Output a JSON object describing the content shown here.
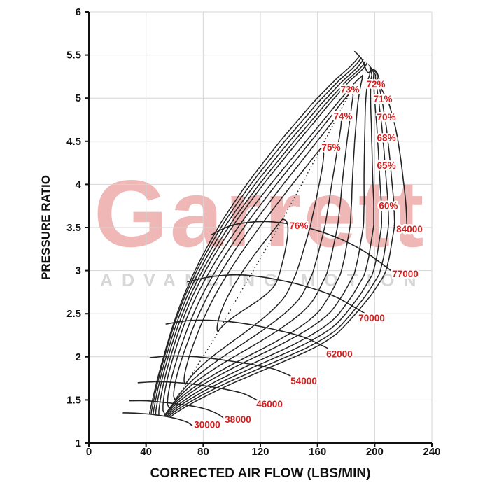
{
  "watermark": {
    "brand": "Garrett",
    "tagline": "ADVANCING MOTION",
    "brand_color": "rgba(217,83,79,0.42)",
    "tagline_color": "#d7d7d7"
  },
  "chart_data": {
    "type": "line",
    "subtype": "compressor-map",
    "title": "",
    "xlabel": "CORRECTED AIR FLOW (LBS/MIN)",
    "ylabel": "PRESSURE RATIO",
    "xlim": [
      0,
      240
    ],
    "ylim": [
      1,
      6
    ],
    "xticks": [
      0,
      40,
      80,
      120,
      160,
      200,
      240
    ],
    "yticks": [
      1,
      1.5,
      2,
      2.5,
      3,
      3.5,
      4,
      4.5,
      5,
      5.5,
      6
    ],
    "grid": true,
    "grid_color": "#d4d4d4",
    "line_color": "#232323",
    "label_color": "#d81e1e",
    "surge_line": [
      [
        24,
        1.35
      ],
      [
        29,
        1.52
      ],
      [
        35,
        1.73
      ],
      [
        43,
        2.0
      ],
      [
        52,
        2.32
      ],
      [
        63,
        2.7
      ],
      [
        76,
        3.12
      ],
      [
        91,
        3.58
      ],
      [
        108,
        4.05
      ],
      [
        127,
        4.52
      ],
      [
        147,
        4.95
      ],
      [
        166,
        5.28
      ],
      [
        178,
        5.44
      ],
      [
        186,
        5.54
      ]
    ],
    "ridge_line": [
      [
        52,
        1.3
      ],
      [
        58,
        1.44
      ],
      [
        66,
        1.64
      ],
      [
        76,
        1.9
      ],
      [
        88,
        2.22
      ],
      [
        101,
        2.6
      ],
      [
        115,
        3.0
      ],
      [
        129,
        3.4
      ],
      [
        143,
        3.82
      ],
      [
        156,
        4.22
      ],
      [
        168,
        4.6
      ],
      [
        179,
        4.95
      ],
      [
        188,
        5.2
      ],
      [
        194,
        5.3
      ],
      [
        197,
        5.38
      ],
      [
        200,
        5.7
      ],
      [
        202,
        6.1
      ],
      [
        204,
        6.8
      ]
    ],
    "choke_line": [
      [
        186,
        5.54
      ],
      [
        194,
        5.42
      ],
      [
        199,
        5.33
      ],
      [
        203,
        5.3
      ],
      [
        207,
        5.15
      ],
      [
        211,
        4.95
      ],
      [
        215,
        4.68
      ],
      [
        218,
        4.38
      ],
      [
        220,
        4.1
      ],
      [
        222,
        3.8
      ],
      [
        222.5,
        3.53
      ],
      [
        218,
        3.15
      ],
      [
        214.5,
        2.96
      ],
      [
        204,
        2.72
      ],
      [
        192.5,
        2.51
      ],
      [
        180,
        2.3
      ],
      [
        167,
        2.1
      ],
      [
        154,
        1.94
      ],
      [
        141,
        1.78
      ],
      [
        129,
        1.64
      ],
      [
        117.5,
        1.5
      ],
      [
        106,
        1.39
      ],
      [
        94.5,
        1.29
      ],
      [
        83,
        1.24
      ],
      [
        72.5,
        1.2
      ]
    ],
    "speed_lines": [
      {
        "rpm": 30000,
        "label": "30000",
        "label_pos": {
          "f": 82.8,
          "p": 1.21
        },
        "points": [
          [
            24,
            1.35
          ],
          [
            34,
            1.345
          ],
          [
            45,
            1.33
          ],
          [
            55,
            1.305
          ],
          [
            63,
            1.275
          ],
          [
            69,
            1.24
          ],
          [
            72.5,
            1.2
          ]
        ]
      },
      {
        "rpm": 38000,
        "label": "38000",
        "label_pos": {
          "f": 104.3,
          "p": 1.27
        },
        "points": [
          [
            28.5,
            1.49
          ],
          [
            40,
            1.49
          ],
          [
            53,
            1.47
          ],
          [
            66,
            1.445
          ],
          [
            78,
            1.41
          ],
          [
            88,
            1.355
          ],
          [
            94.5,
            1.29
          ]
        ]
      },
      {
        "rpm": 46000,
        "label": "46000",
        "label_pos": {
          "f": 126.4,
          "p": 1.45
        },
        "points": [
          [
            34.5,
            1.7
          ],
          [
            48,
            1.71
          ],
          [
            63,
            1.7
          ],
          [
            79,
            1.67
          ],
          [
            95,
            1.625
          ],
          [
            108,
            1.575
          ],
          [
            117.5,
            1.5
          ]
        ]
      },
      {
        "rpm": 54000,
        "label": "54000",
        "label_pos": {
          "f": 150.4,
          "p": 1.72
        },
        "points": [
          [
            42.8,
            1.99
          ],
          [
            58,
            2.01
          ],
          [
            76,
            2.0
          ],
          [
            95,
            1.96
          ],
          [
            113,
            1.915
          ],
          [
            129,
            1.86
          ],
          [
            141,
            1.78
          ]
        ]
      },
      {
        "rpm": 62000,
        "label": "62000",
        "label_pos": {
          "f": 175.3,
          "p": 2.03
        },
        "points": [
          [
            54,
            2.38
          ],
          [
            70,
            2.42
          ],
          [
            89,
            2.42
          ],
          [
            109,
            2.385
          ],
          [
            129,
            2.32
          ],
          [
            150,
            2.23
          ],
          [
            167,
            2.1
          ]
        ]
      },
      {
        "rpm": 70000,
        "label": "70000",
        "label_pos": {
          "f": 197.9,
          "p": 2.45
        },
        "points": [
          [
            69,
            2.87
          ],
          [
            86,
            2.93
          ],
          [
            106,
            2.95
          ],
          [
            127,
            2.91
          ],
          [
            149,
            2.83
          ],
          [
            172,
            2.7
          ],
          [
            192.5,
            2.51
          ]
        ]
      },
      {
        "rpm": 77000,
        "label": "77000",
        "label_pos": {
          "f": 221.4,
          "p": 2.96
        },
        "points": [
          [
            86,
            3.42
          ],
          [
            101,
            3.53
          ],
          [
            122,
            3.57
          ],
          [
            144,
            3.53
          ],
          [
            168,
            3.42
          ],
          [
            192,
            3.23
          ],
          [
            214.5,
            2.96
          ]
        ]
      },
      {
        "rpm": 84000,
        "label": "84000",
        "label_pos": {
          "f": 224.3,
          "p": 3.48
        },
        "points": [
          [
            186,
            5.54
          ],
          [
            191,
            5.45
          ],
          [
            195,
            5.3
          ],
          [
            199,
            5.33
          ],
          [
            202,
            5.28
          ],
          [
            205,
            5.1
          ],
          [
            209,
            4.98
          ],
          [
            212,
            4.82
          ],
          [
            215,
            4.62
          ],
          [
            218,
            4.32
          ],
          [
            220,
            4.05
          ],
          [
            221.8,
            3.78
          ],
          [
            222.5,
            3.53
          ]
        ]
      }
    ],
    "efficiency_contours": [
      {
        "pct": "76%",
        "p_bottom": 2.29,
        "p_apex": 3.6,
        "hug_surge": 0.82,
        "bulge": 0.28,
        "rise_q": 0.5,
        "fall_start": 0.55,
        "label_pos": {
          "f": 146.9,
          "p": 3.52
        }
      },
      {
        "pct": "75%",
        "p_bottom": 1.68,
        "p_apex": 4.42,
        "hug_surge": 0.6,
        "bulge": 0.42,
        "rise_q": 0.48,
        "fall_start": 0.6,
        "label_pos": {
          "f": 169.5,
          "p": 4.43
        }
      },
      {
        "pct": "74%",
        "p_bottom": 1.5,
        "p_apex": 4.82,
        "hug_surge": 0.48,
        "bulge": 0.55,
        "rise_q": 0.45,
        "fall_start": 0.62,
        "label_pos": {
          "f": 177.8,
          "p": 4.79
        }
      },
      {
        "pct": "73%",
        "p_bottom": 1.4,
        "p_apex": 5.08,
        "hug_surge": 0.38,
        "bulge": 0.66,
        "rise_q": 0.42,
        "fall_start": 0.65,
        "label_pos": {
          "f": 182.7,
          "p": 5.1
        }
      },
      {
        "pct": "72%",
        "p_bottom": 1.33,
        "p_apex": 5.26,
        "hug_surge": 0.29,
        "bulge": 0.76,
        "rise_q": 0.38,
        "fall_start": 0.68,
        "label_pos": {
          "f": 200.8,
          "p": 5.16
        }
      },
      {
        "pct": "71%",
        "p_bottom": 1.26,
        "p_apex": 5.65,
        "hug_surge": 0.22,
        "bulge": 0.84,
        "rise_q": 0.33,
        "fall_start": 0.7,
        "label_pos": {
          "f": 205.7,
          "p": 4.99
        }
      },
      {
        "pct": "70%",
        "p_bottom": 1.2,
        "p_apex": 5.85,
        "hug_surge": 0.17,
        "bulge": 0.9,
        "rise_q": 0.28,
        "fall_start": 0.72,
        "label_pos": {
          "f": 208.2,
          "p": 4.78
        }
      },
      {
        "pct": "68%",
        "p_bottom": 1.15,
        "p_apex": 6.1,
        "hug_surge": 0.12,
        "bulge": 0.94,
        "rise_q": 0.24,
        "fall_start": 0.74,
        "label_pos": {
          "f": 208.2,
          "p": 4.54
        }
      },
      {
        "pct": "65%",
        "p_bottom": 1.1,
        "p_apex": 6.4,
        "hug_surge": 0.075,
        "bulge": 0.97,
        "rise_q": 0.2,
        "fall_start": 0.76,
        "label_pos": {
          "f": 208.2,
          "p": 4.22
        }
      },
      {
        "pct": "60%",
        "p_bottom": 1.05,
        "p_apex": 6.8,
        "hug_surge": 0.04,
        "bulge": 0.99,
        "rise_q": 0.16,
        "fall_start": 0.78,
        "label_pos": {
          "f": 209.6,
          "p": 3.75
        }
      }
    ]
  }
}
